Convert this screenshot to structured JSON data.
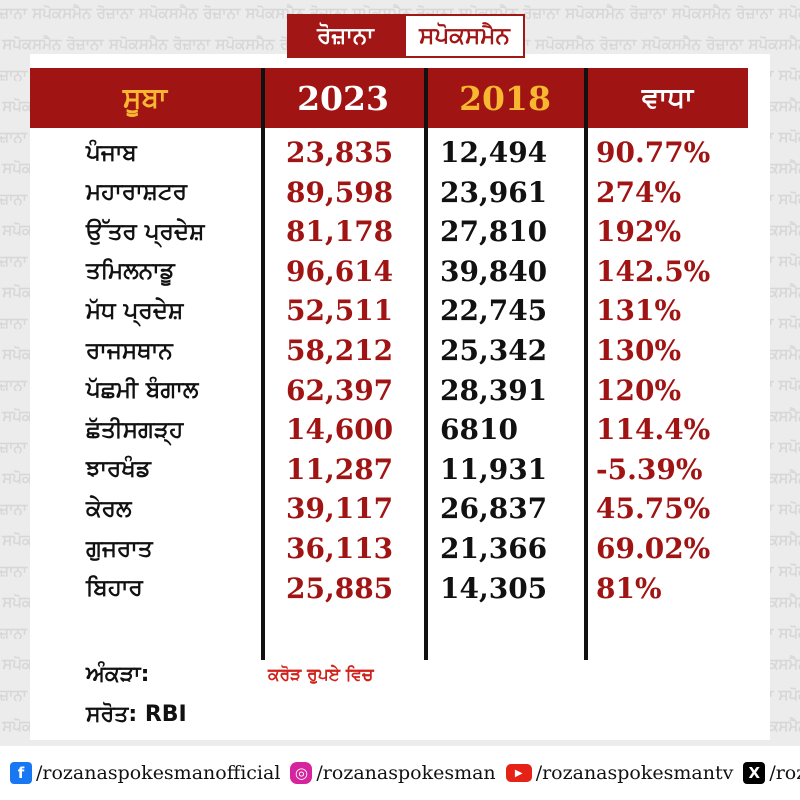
{
  "watermark_text": "ਰੋਜ਼ਾਨਾ ਸਪੋਕਸਮੈਨ",
  "logo": {
    "left": "ਰੋਜ਼ਾਨਾ",
    "right": "ਸਪੋਕਸਮੈਨ"
  },
  "table": {
    "headers": {
      "state": "ਸੂਬਾ",
      "y2023": "2023",
      "y2018": "2018",
      "change": "ਵਾਧਾ"
    },
    "rows": [
      {
        "state": "ਪੰਜਾਬ",
        "y2023": "23,835",
        "y2018": "12,494",
        "change": "90.77%"
      },
      {
        "state": "ਮਹਾਰਾਸ਼ਟਰ",
        "y2023": "89,598",
        "y2018": "23,961",
        "change": "274%"
      },
      {
        "state": "ਉੱਤਰ ਪ੍ਰਦੇਸ਼",
        "y2023": "81,178",
        "y2018": "27,810",
        "change": "192%"
      },
      {
        "state": "ਤਮਿਲਨਾਡੂ",
        "y2023": "96,614",
        "y2018": "39,840",
        "change": "142.5%"
      },
      {
        "state": "ਮੱਧ ਪ੍ਰਦੇਸ਼",
        "y2023": "52,511",
        "y2018": "22,745",
        "change": "131%"
      },
      {
        "state": "ਰਾਜਸਥਾਨ",
        "y2023": "58,212",
        "y2018": "25,342",
        "change": "130%"
      },
      {
        "state": "ਪੱਛਮੀ ਬੰਗਾਲ",
        "y2023": "62,397",
        "y2018": "28,391",
        "change": "120%"
      },
      {
        "state": "ਛੱਤੀਸਗੜ੍ਹ",
        "y2023": "14,600",
        "y2018": "6810",
        "change": "114.4%"
      },
      {
        "state": "ਝਾਰਖੰਡ",
        "y2023": "11,287",
        "y2018": "11,931",
        "change": "-5.39%"
      },
      {
        "state": "ਕੇਰਲ",
        "y2023": "39,117",
        "y2018": "26,837",
        "change": "45.75%"
      },
      {
        "state": "ਗੁਜਰਾਤ",
        "y2023": "36,113",
        "y2018": "21,366",
        "change": "69.02%"
      },
      {
        "state": "ਬਿਹਾਰ",
        "y2023": "25,885",
        "y2018": "14,305",
        "change": "81%"
      }
    ]
  },
  "footer": {
    "data_label": "ਅੰਕੜਾ:",
    "unit_note": "ਕਰੋੜ ਰੁਪਏ ਵਿਚ",
    "source_label": "ਸਰੋਤ: RBI"
  },
  "social": [
    {
      "icon": "facebook-icon",
      "glyph": "f",
      "handle": "/rozanaspokesmanofficial"
    },
    {
      "icon": "instagram-icon",
      "glyph": "◎",
      "handle": "/rozanaspokesman"
    },
    {
      "icon": "youtube-icon",
      "glyph": "▶",
      "handle": "/rozanaspokesmantv"
    },
    {
      "icon": "x-icon",
      "glyph": "X",
      "handle": "/rozanaspokesman"
    }
  ],
  "colors": {
    "brand_red": "#a11414",
    "accent_gold": "#f7b731",
    "unit_red": "#d0221a"
  }
}
